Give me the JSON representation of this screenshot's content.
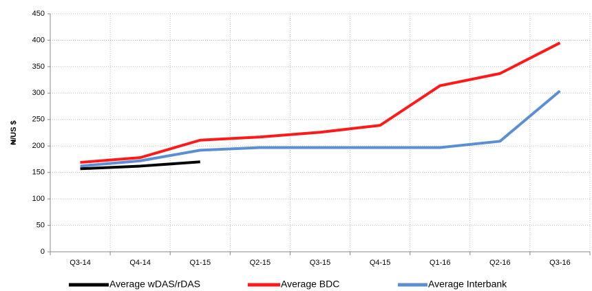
{
  "chart_data": {
    "type": "line",
    "y_label": "₦/US $",
    "categories": [
      "Q3-14",
      "Q4-14",
      "Q1-15",
      "Q2-15",
      "Q3-15",
      "Q4-15",
      "Q1-16",
      "Q2-16",
      "Q3-16"
    ],
    "series": [
      {
        "name": "Average wDAS/rDAS",
        "color": "#000000",
        "values": [
          157,
          162,
          170,
          null,
          null,
          null,
          null,
          null,
          null
        ]
      },
      {
        "name": "Average BDC",
        "color": "#ff1a1a",
        "values": [
          169,
          178,
          211,
          217,
          226,
          239,
          314,
          337,
          395
        ]
      },
      {
        "name": "Average Interbank",
        "color": "#5b8fd4",
        "values": [
          162,
          172,
          192,
          197,
          197,
          197,
          197,
          209,
          304
        ]
      }
    ],
    "ylim": [
      0,
      450
    ],
    "yticks": [
      0,
      50,
      100,
      150,
      200,
      250,
      300,
      350,
      400,
      450
    ],
    "grid": true
  }
}
